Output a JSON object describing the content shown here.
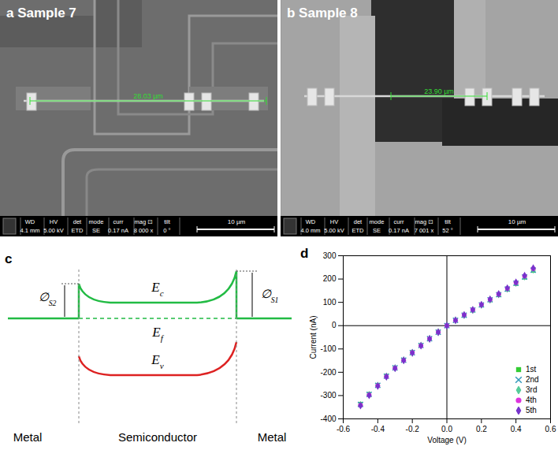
{
  "panels": {
    "a": {
      "letter": "a",
      "title": "Sample 7",
      "measurement": "28.03 µm",
      "info": {
        "headers": [
          "WD",
          "HV",
          "det",
          "mode",
          "curr",
          "mag ⊡",
          "tilt"
        ],
        "values": [
          "4.1 mm",
          "5.00 kV",
          "ETD",
          "SE",
          "0.17 nA",
          "8 000 x",
          "0 °"
        ]
      },
      "scale_bar": "10 µm"
    },
    "b": {
      "letter": "b",
      "title": "Sample 8",
      "measurement": "23.90 µm",
      "info": {
        "headers": [
          "WD",
          "HV",
          "det",
          "mode",
          "curr",
          "mag ⊡",
          "tilt"
        ],
        "values": [
          "4.0 mm",
          "5.00 kV",
          "ETD",
          "SE",
          "0.17 nA",
          "7 001 x",
          "52 °"
        ]
      },
      "scale_bar": "10 µm"
    },
    "c": {
      "letter": "c",
      "Ec": {
        "main": "E",
        "sub": "c"
      },
      "Ef": {
        "main": "E",
        "sub": "f"
      },
      "Ev": {
        "main": "E",
        "sub": "v"
      },
      "barrier_left": {
        "main": "∅",
        "sub": "S2"
      },
      "barrier_right": {
        "main": "∅",
        "sub": "S1"
      },
      "regions": [
        "Metal",
        "Semiconductor",
        "Metal"
      ]
    },
    "d": {
      "letter": "d"
    }
  },
  "chart_data": {
    "type": "scatter",
    "x_label": "Voltage (V)",
    "y_label": "Current (nA)",
    "xlim": [
      -0.6,
      0.6
    ],
    "ylim": [
      -400,
      300
    ],
    "xticks": [
      -0.6,
      -0.4,
      -0.2,
      {
        "value": 0,
        "label": "0.0"
      },
      0.2,
      0.4,
      0.6
    ],
    "yticks": [
      -400,
      -300,
      -200,
      -100,
      0,
      100,
      200,
      300
    ],
    "legend": "lower right",
    "x": [
      -0.5,
      -0.45,
      -0.4,
      -0.35,
      -0.3,
      -0.25,
      -0.2,
      -0.15,
      -0.1,
      -0.05,
      0,
      0.05,
      0.1,
      0.15,
      0.2,
      0.25,
      0.3,
      0.35,
      0.4,
      0.45,
      0.5
    ],
    "series": [
      {
        "name": "1st",
        "color": "#33cc33",
        "marker": "square",
        "values": [
          -336,
          -294,
          -255,
          -216,
          -181,
          -147,
          -115,
          -85,
          -56,
          -28,
          0,
          23,
          45,
          66,
          88,
          110,
          132,
          156,
          180,
          207,
          236
        ]
      },
      {
        "name": "2nd",
        "color": "#3399bb",
        "marker": "times",
        "values": [
          -338,
          -295,
          -256,
          -217,
          -181,
          -148,
          -116,
          -85,
          -56,
          -28,
          0,
          23,
          45,
          67,
          89,
          111,
          133,
          157,
          182,
          209,
          238
        ]
      },
      {
        "name": "3rd",
        "color": "#55cc99",
        "marker": "diamond",
        "values": [
          -340,
          -297,
          -257,
          -218,
          -182,
          -148,
          -116,
          -85,
          -56,
          -28,
          0,
          23,
          45,
          67,
          89,
          111,
          134,
          158,
          183,
          210,
          240
        ]
      },
      {
        "name": "4th",
        "color": "#dd33dd",
        "marker": "circle",
        "values": [
          -342,
          -298,
          -258,
          -219,
          -183,
          -149,
          -116,
          -86,
          -56,
          -28,
          0,
          23,
          46,
          68,
          90,
          112,
          135,
          160,
          185,
          213,
          244
        ]
      },
      {
        "name": "5th",
        "color": "#7733cc",
        "marker": "diamond",
        "values": [
          -343,
          -299,
          -259,
          -219,
          -183,
          -149,
          -117,
          -86,
          -57,
          -28,
          0,
          23,
          46,
          68,
          90,
          113,
          136,
          161,
          186,
          215,
          247
        ]
      }
    ]
  }
}
